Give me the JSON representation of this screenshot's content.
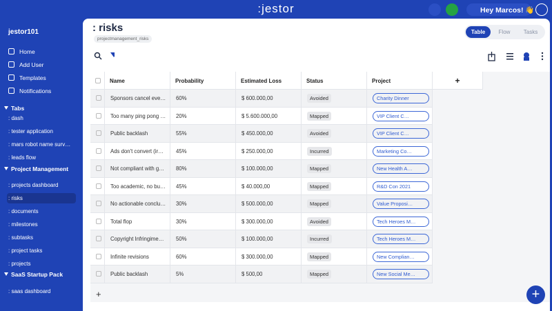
{
  "header": {
    "logo": ":jestor",
    "greeting": "Hey Marcos! 👋"
  },
  "sidebar": {
    "workspace": "jestor101",
    "nav": [
      "Home",
      "Add User",
      "Templates",
      "Notifications"
    ],
    "sections": [
      {
        "title": "Tabs",
        "items": [
          ": dash",
          ": tester application",
          ": mars robot name surv…",
          ": leads flow"
        ]
      },
      {
        "title": "Project Management",
        "items": [
          ": projects dashboard",
          ": risks",
          ": documents",
          ": milestones",
          ": subtasks",
          ": project tasks",
          ": projects"
        ]
      },
      {
        "title": "SaaS Startup Pack",
        "items": [
          ": saas dashboard"
        ]
      }
    ]
  },
  "page": {
    "title": ": risks",
    "subtitle": "projectmanagement_risks",
    "views": [
      "Table",
      "Flow",
      "Tasks"
    ]
  },
  "table": {
    "columns": [
      "Name",
      "Probability",
      "Estimated Loss",
      "Status",
      "Project"
    ],
    "rows": [
      [
        "Sponsors cancel eve…",
        "60%",
        "$ 600.000,00",
        "Avoided",
        "Charity Dinner"
      ],
      [
        "Too many ping pong …",
        "20%",
        "$ 5.600.000,00",
        "Mapped",
        "VIP Client C…"
      ],
      [
        "Public backlash",
        "55%",
        "$ 450.000,00",
        "Avoided",
        "VIP Client C…"
      ],
      [
        "Ads don't convert (ir…",
        "45%",
        "$ 250.000,00",
        "Incurred",
        "Marketing Co…"
      ],
      [
        "Not compliant with g…",
        "80%",
        "$ 100.000,00",
        "Mapped",
        "New Health A…"
      ],
      [
        "Too academic, no bu…",
        "45%",
        "$ 40.000,00",
        "Mapped",
        "R&D Con 2021"
      ],
      [
        "No actionable conclu…",
        "30%",
        "$ 500.000,00",
        "Mapped",
        "Value Proposi…"
      ],
      [
        "Total flop",
        "30%",
        "$ 300.000,00",
        "Avoided",
        "Tech Heroes M…"
      ],
      [
        "Copyright Infringime…",
        "50%",
        "$ 100.000,00",
        "Incurred",
        "Tech Heroes M…"
      ],
      [
        "Infinite revisions",
        "60%",
        "$ 300.000,00",
        "Mapped",
        "New Complian…"
      ],
      [
        "Public backlash",
        "5%",
        "$ 500,00",
        "Mapped",
        "New Social Me…"
      ]
    ]
  }
}
